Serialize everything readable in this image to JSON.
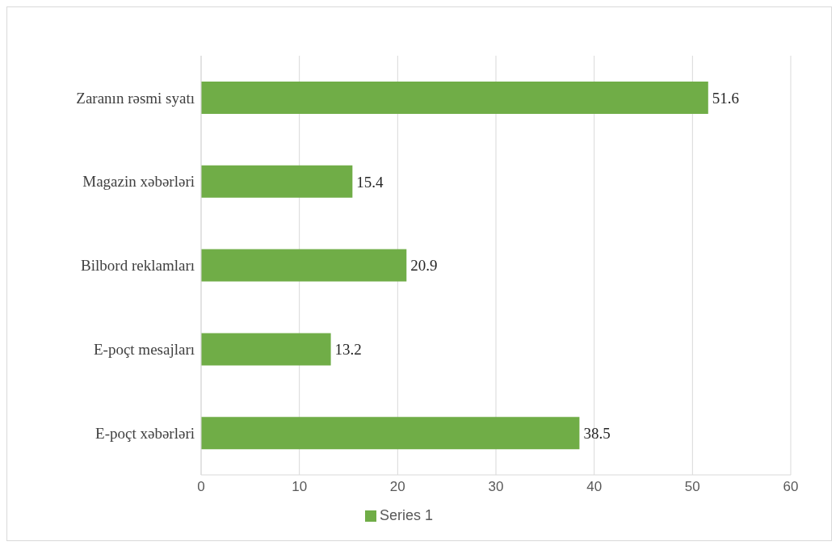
{
  "chart_data": {
    "type": "bar",
    "orientation": "horizontal",
    "categories": [
      "Zaranın rəsmi syatı",
      "Magazin xəbərləri",
      "Bilbord reklamları",
      "E-poçt mesajları",
      "E-poçt xəbərləri"
    ],
    "series": [
      {
        "name": "Series 1",
        "color": "#70ad47",
        "values": [
          51.6,
          15.4,
          20.9,
          13.2,
          38.5
        ]
      }
    ],
    "xlim": [
      0,
      60
    ],
    "xticks": [
      0,
      10,
      20,
      30,
      40,
      50,
      60
    ],
    "grid": "x",
    "legend": "bottom",
    "data_labels": true
  }
}
